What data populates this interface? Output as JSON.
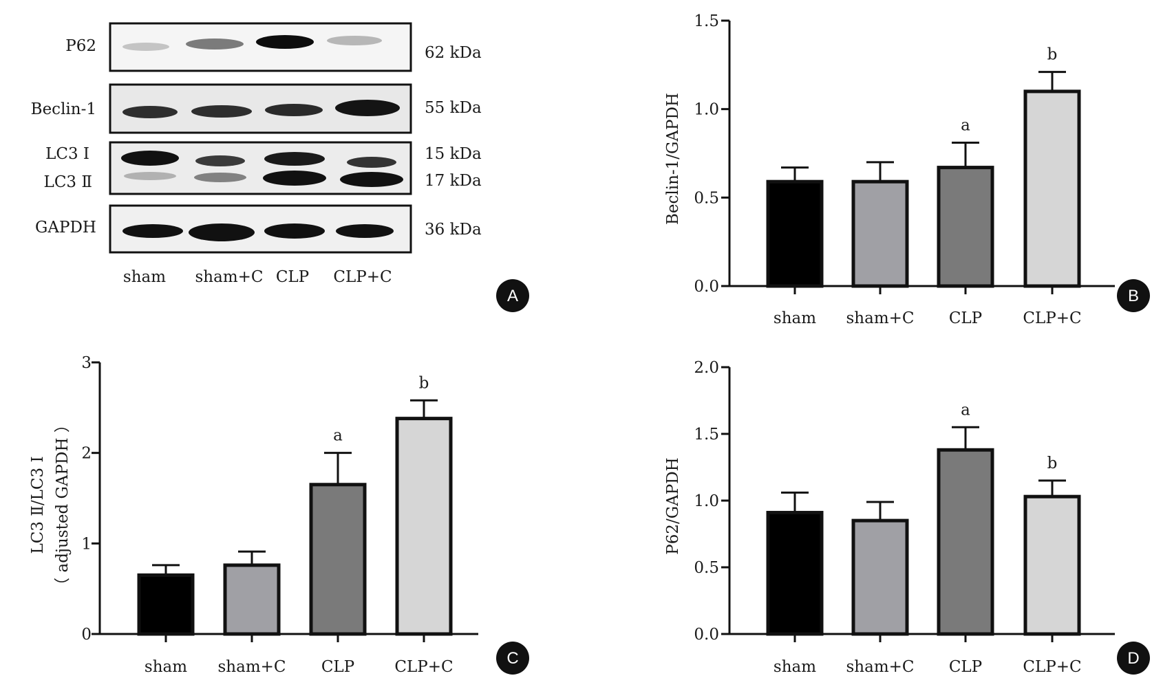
{
  "figure": {
    "panels": {
      "A": {
        "letter": "A",
        "blot_rows": [
          {
            "label": "P62",
            "sizes": [
              "62 kDa"
            ]
          },
          {
            "label": "Beclin-1",
            "sizes": [
              "55 kDa"
            ]
          },
          {
            "label": "LC3 Ⅰ",
            "label2": "LC3 Ⅱ",
            "sizes": [
              "15 kDa",
              "17 kDa"
            ]
          },
          {
            "label": "GAPDH",
            "sizes": [
              "36 kDa"
            ]
          }
        ],
        "lanes": [
          "sham",
          "sham+C",
          "CLP",
          "CLP+C"
        ]
      }
    },
    "colors": {
      "sham": "#000000",
      "sham+C": "#a0a0a5",
      "CLP": "#7a7a7a",
      "CLP+C": "#d6d6d6",
      "badge": "#111111"
    }
  },
  "chart_data": [
    {
      "panel": "B",
      "type": "bar",
      "categories": [
        "sham",
        "sham+C",
        "CLP",
        "CLP+C"
      ],
      "values": [
        0.59,
        0.59,
        0.67,
        1.1
      ],
      "errors": [
        0.08,
        0.11,
        0.14,
        0.11
      ],
      "annotations": [
        "",
        "",
        "a",
        "b"
      ],
      "ylabel": "Beclin-1/GAPDH",
      "ylim": [
        0,
        1.5
      ],
      "yticks": [
        "0.0",
        "0.5",
        "1.0",
        "1.5"
      ],
      "ytick_values": [
        0,
        0.5,
        1.0,
        1.5
      ],
      "grid": false
    },
    {
      "panel": "C",
      "type": "bar",
      "categories": [
        "sham",
        "sham+C",
        "CLP",
        "CLP+C"
      ],
      "values": [
        0.65,
        0.76,
        1.65,
        2.38
      ],
      "errors": [
        0.11,
        0.15,
        0.35,
        0.2
      ],
      "annotations": [
        "",
        "",
        "a",
        "b"
      ],
      "ylabel": "LC3 Ⅱ/LC3 Ⅰ",
      "ylabel2": "（ adjusted GAPDH ）",
      "ylim": [
        0,
        3
      ],
      "yticks": [
        "0",
        "1",
        "2",
        "3"
      ],
      "ytick_values": [
        0,
        1,
        2,
        3
      ],
      "grid": false
    },
    {
      "panel": "D",
      "type": "bar",
      "categories": [
        "sham",
        "sham+C",
        "CLP",
        "CLP+C"
      ],
      "values": [
        0.91,
        0.85,
        1.38,
        1.03
      ],
      "errors": [
        0.15,
        0.14,
        0.17,
        0.12
      ],
      "annotations": [
        "",
        "",
        "a",
        "b"
      ],
      "ylabel": "P62/GAPDH",
      "ylim": [
        0,
        2.0
      ],
      "yticks": [
        "0.0",
        "0.5",
        "1.0",
        "1.5",
        "2.0"
      ],
      "ytick_values": [
        0,
        0.5,
        1.0,
        1.5,
        2.0
      ],
      "grid": false
    }
  ]
}
